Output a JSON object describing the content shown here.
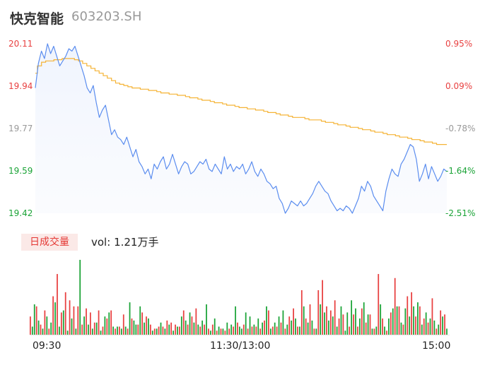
{
  "header": {
    "name": "快克智能",
    "code": "603203.SH"
  },
  "volume_panel": {
    "badge": "日成交量",
    "label": "vol:",
    "value": "1.21万手"
  },
  "colors": {
    "price_line": "#5b8def",
    "avg_line": "#f5b335",
    "up": "#e84040",
    "down": "#1aa336",
    "neutral": "#999999"
  },
  "chart_data": [
    {
      "type": "line",
      "y_ticks": [
        "20.11",
        "19.94",
        "19.77",
        "19.59",
        "19.42"
      ],
      "y_right_ticks": [
        "0.95%",
        "0.09%",
        "-0.78%",
        "-1.64%",
        "-2.51%"
      ],
      "ylim": [
        19.42,
        20.11
      ],
      "x_ticks": [
        "09:30",
        "11:30/13:00",
        "15:00"
      ],
      "series": [
        {
          "values": [
            19.93,
            20.03,
            20.08,
            20.05,
            20.11,
            20.07,
            20.1,
            20.06,
            20.02,
            20.04,
            20.06,
            20.09,
            20.08,
            20.1,
            20.06,
            20.02,
            19.98,
            19.93,
            19.91,
            19.94,
            19.87,
            19.81,
            19.84,
            19.86,
            19.8,
            19.74,
            19.76,
            19.73,
            19.72,
            19.7,
            19.73,
            19.69,
            19.65,
            19.68,
            19.63,
            19.61,
            19.58,
            19.6,
            19.56,
            19.62,
            19.6,
            19.63,
            19.65,
            19.6,
            19.62,
            19.66,
            19.62,
            19.58,
            19.61,
            19.63,
            19.62,
            19.58,
            19.59,
            19.61,
            19.63,
            19.62,
            19.64,
            19.6,
            19.59,
            19.62,
            19.6,
            19.58,
            19.65,
            19.6,
            19.62,
            19.59,
            19.61,
            19.6,
            19.62,
            19.58,
            19.6,
            19.63,
            19.59,
            19.57,
            19.6,
            19.58,
            19.55,
            19.54,
            19.52,
            19.53,
            19.48,
            19.46,
            19.42,
            19.44,
            19.47,
            19.46,
            19.45,
            19.47,
            19.45,
            19.46,
            19.48,
            19.5,
            19.53,
            19.55,
            19.53,
            19.51,
            19.5,
            19.47,
            19.45,
            19.43,
            19.44,
            19.43,
            19.45,
            19.44,
            19.42,
            19.45,
            19.48,
            19.53,
            19.51,
            19.55,
            19.53,
            19.49,
            19.47,
            19.45,
            19.43,
            19.51,
            19.56,
            19.6,
            19.58,
            19.57,
            19.62,
            19.64,
            19.67,
            19.7,
            19.69,
            19.64,
            19.55,
            19.58,
            19.62,
            19.56,
            19.61,
            19.58,
            19.55,
            19.57,
            19.6,
            19.59
          ]
        },
        {
          "values": [
            19.99,
            20.02,
            20.035,
            20.04,
            20.04,
            20.045,
            20.045,
            20.05,
            20.05,
            20.05,
            20.045,
            20.04,
            20.03,
            20.02,
            20.01,
            20.0,
            19.99,
            19.98,
            19.97,
            19.96,
            19.95,
            19.945,
            19.94,
            19.935,
            19.93,
            19.93,
            19.925,
            19.925,
            19.92,
            19.92,
            19.915,
            19.91,
            19.91,
            19.905,
            19.905,
            19.9,
            19.9,
            19.895,
            19.89,
            19.89,
            19.885,
            19.88,
            19.88,
            19.875,
            19.87,
            19.87,
            19.865,
            19.86,
            19.86,
            19.855,
            19.85,
            19.85,
            19.845,
            19.845,
            19.84,
            19.84,
            19.835,
            19.83,
            19.83,
            19.825,
            19.82,
            19.82,
            19.815,
            19.81,
            19.81,
            19.81,
            19.805,
            19.8,
            19.8,
            19.8,
            19.795,
            19.79,
            19.79,
            19.785,
            19.78,
            19.78,
            19.775,
            19.77,
            19.77,
            19.765,
            19.76,
            19.76,
            19.755,
            19.75,
            19.75,
            19.745,
            19.74,
            19.74,
            19.735,
            19.73,
            19.73,
            19.725,
            19.72,
            19.72,
            19.715,
            19.71,
            19.71,
            19.705,
            19.7,
            19.7,
            19.7
          ]
        }
      ]
    },
    {
      "type": "bar",
      "up_values": [
        9,
        14,
        5,
        12,
        3,
        19,
        30,
        11,
        21,
        17,
        14,
        14,
        5,
        13,
        11,
        6,
        12,
        4,
        8,
        12,
        3,
        4,
        10,
        3,
        8,
        5,
        11,
        9,
        5,
        3,
        4,
        4,
        7,
        6,
        5,
        4,
        12,
        5,
        9,
        13,
        4,
        5,
        3,
        5,
        2,
        3,
        2,
        3,
        4,
        6,
        5,
        3,
        4,
        4,
        3,
        7,
        12,
        4,
        4,
        6,
        3,
        9,
        13,
        4,
        22,
        8,
        15,
        3,
        22,
        27,
        14,
        12,
        17,
        8,
        10,
        4,
        10,
        4,
        13,
        6,
        10,
        3,
        30,
        8,
        2,
        11,
        28,
        14,
        5,
        19,
        21,
        9,
        14,
        8,
        6,
        18,
        3,
        12,
        10
      ],
      "down_values": [
        4,
        15,
        7,
        3,
        9,
        6,
        16,
        4,
        12,
        2,
        8,
        3,
        37,
        9,
        5,
        3,
        6,
        2,
        9,
        11,
        4,
        4,
        3,
        4,
        16,
        7,
        5,
        14,
        6,
        8,
        2,
        3,
        6,
        3,
        5,
        2,
        4,
        9,
        7,
        11,
        6,
        5,
        7,
        15,
        2,
        8,
        4,
        3,
        6,
        5,
        14,
        4,
        3,
        11,
        9,
        5,
        8,
        6,
        14,
        3,
        6,
        9,
        12,
        5,
        7,
        8,
        4,
        14,
        6,
        7,
        3,
        15,
        11,
        7,
        9,
        4,
        14,
        2,
        11,
        17,
        13,
        8,
        16,
        10,
        3,
        4,
        15,
        4,
        8,
        13,
        14,
        6,
        13,
        9,
        14,
        16,
        5,
        11,
        8,
        7,
        5,
        9,
        3
      ]
    }
  ]
}
